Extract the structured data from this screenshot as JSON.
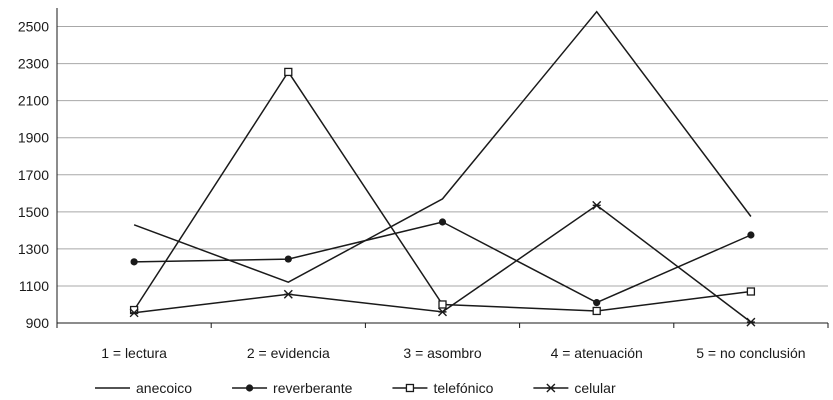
{
  "chart_data": {
    "type": "line",
    "categories": [
      "1 = lectura",
      "2 = evidencia",
      "3 = asombro",
      "4 = atenuación",
      "5 = no conclusión"
    ],
    "ylim": [
      900,
      2600
    ],
    "yticks": [
      900,
      1100,
      1300,
      1500,
      1700,
      1900,
      2100,
      2300,
      2500
    ],
    "grid": true,
    "legend_position": "bottom",
    "series": [
      {
        "name": "anecoico",
        "marker": "none",
        "values": [
          1430,
          1120,
          1570,
          2580,
          1475
        ]
      },
      {
        "name": "reverberante",
        "marker": "filled-circle",
        "values": [
          1230,
          1245,
          1445,
          1010,
          1375
        ]
      },
      {
        "name": "telefónico",
        "marker": "open-square",
        "values": [
          970,
          2255,
          1000,
          965,
          1070
        ]
      },
      {
        "name": "celular",
        "marker": "star",
        "values": [
          955,
          1055,
          960,
          1535,
          905
        ]
      }
    ]
  }
}
